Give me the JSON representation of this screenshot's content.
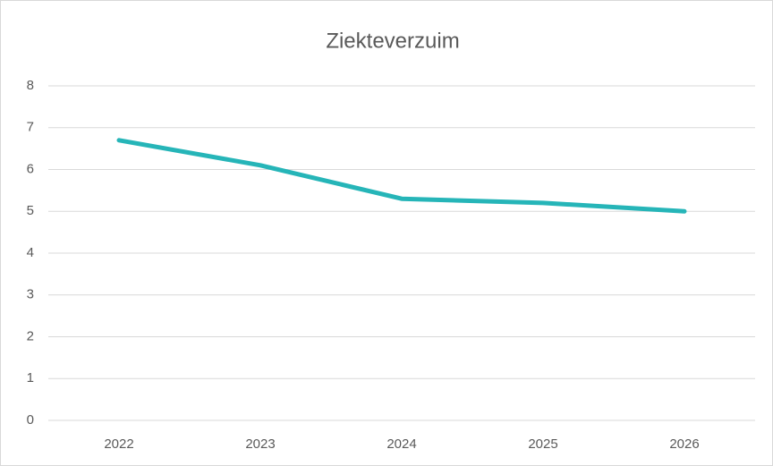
{
  "chart_data": {
    "type": "line",
    "title": "Ziekteverzuim",
    "categories": [
      "2022",
      "2023",
      "2024",
      "2025",
      "2026"
    ],
    "values": [
      6.7,
      6.1,
      5.3,
      5.2,
      5.0
    ],
    "color": "#26b5b8",
    "ylim": [
      0,
      8
    ],
    "yticks": [
      0,
      1,
      2,
      3,
      4,
      5,
      6,
      7,
      8
    ],
    "grid": true
  }
}
